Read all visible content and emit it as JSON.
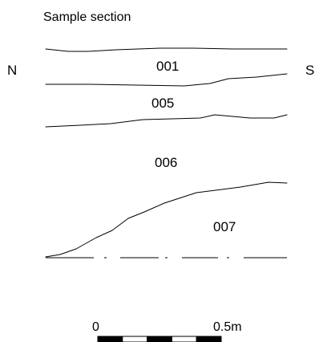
{
  "title": "Sample section",
  "orientation": {
    "left": "N",
    "right": "S"
  },
  "contexts": [
    {
      "id": "001",
      "label": "001"
    },
    {
      "id": "005",
      "label": "005"
    },
    {
      "id": "006",
      "label": "006"
    },
    {
      "id": "007",
      "label": "007"
    }
  ],
  "boundaries": [
    {
      "name": "ground-surface"
    },
    {
      "name": "boundary-001-005"
    },
    {
      "name": "boundary-005-006"
    },
    {
      "name": "boundary-006-007"
    },
    {
      "name": "section-base"
    }
  ],
  "scale_bar": {
    "start_label": "0",
    "end_label": "0.5m",
    "segments": 5
  },
  "colors": {
    "ink": "#000000",
    "background": "#ffffff"
  }
}
